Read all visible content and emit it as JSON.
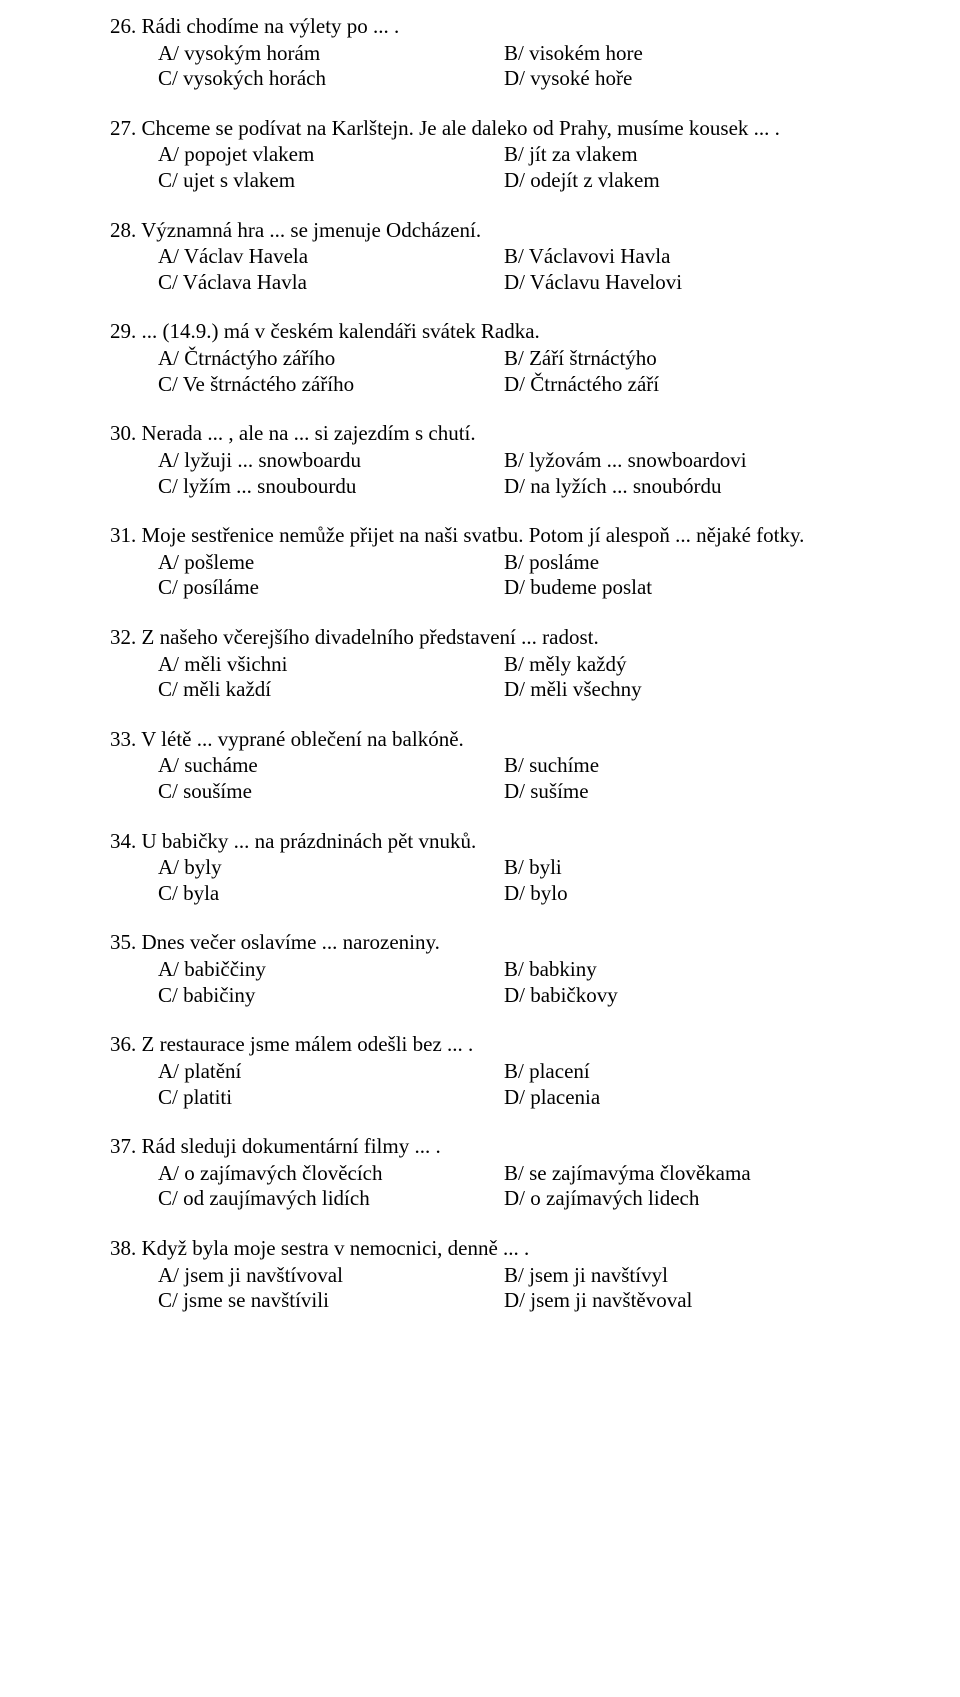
{
  "questions": [
    {
      "num": "26.",
      "text": "Rádi chodíme na výlety po ... .",
      "a": "A/ vysokým horám",
      "b": "B/ visokém hore",
      "c": "C/ vysokých horách",
      "d": "D/ vysoké hoře"
    },
    {
      "num": "27.",
      "text": "Chceme se podívat na Karlštejn. Je ale daleko od Prahy, musíme kousek ... .",
      "a": "A/ popojet vlakem",
      "b": "B/ jít za vlakem",
      "c": "C/ ujet s vlakem",
      "d": "D/ odejít z vlakem"
    },
    {
      "num": "28.",
      "text": "Významná hra ... se jmenuje Odcházení.",
      "a": "A/ Václav Havela",
      "b": "B/ Václavovi Havla",
      "c": "C/ Václava Havla",
      "d": "D/ Václavu Havelovi"
    },
    {
      "num": "29.",
      "text": "... (14.9.) má v českém kalendáři svátek Radka.",
      "a": "A/ Čtrnáctýho zářího",
      "b": "B/ Září štrnáctýho",
      "c": "C/ Ve štrnáctého zářího",
      "d": "D/ Čtrnáctého září"
    },
    {
      "num": "30.",
      "text": "Nerada ... , ale na ... si zajezdím s chutí.",
      "a": "A/ lyžuji ... snowboardu",
      "b": "B/ lyžovám ... snowboardovi",
      "c": "C/ lyžím ... snoubourdu",
      "d": "D/ na lyžích ... snoubórdu"
    },
    {
      "num": "31.",
      "text": "Moje sestřenice nemůže přijet na naši svatbu. Potom jí alespoň ... nějaké fotky.",
      "a": "A/ pošleme",
      "b": "B/ posláme",
      "c": "C/ posíláme",
      "d": "D/ budeme poslat"
    },
    {
      "num": "32.",
      "text": "Z našeho včerejšího divadelního představení ... radost.",
      "a": "A/ měli všichni",
      "b": "B/ měly každý",
      "c": "C/ měli každí",
      "d": "D/ měli všechny"
    },
    {
      "num": "33.",
      "text": "V létě ... vyprané oblečení na balkóně.",
      "a": "A/ sucháme",
      "b": "B/ suchíme",
      "c": "C/ soušíme",
      "d": "D/ sušíme"
    },
    {
      "num": "34.",
      "text": "U babičky ... na prázdninách pět vnuků.",
      "a": "A/ byly",
      "b": "B/ byli",
      "c": "C/ byla",
      "d": "D/ bylo"
    },
    {
      "num": "35.",
      "text": "Dnes večer oslavíme ... narozeniny.",
      "a": "A/ babiččiny",
      "b": "B/ babkiny",
      "c": "C/ babičiny",
      "d": "D/ babičkovy"
    },
    {
      "num": "36.",
      "text": "Z restaurace jsme málem odešli bez ... .",
      "a": "A/ platění",
      "b": "B/ placení",
      "c": "C/ platiti",
      "d": "D/ placenia"
    },
    {
      "num": "37.",
      "text": "Rád sleduji dokumentární filmy ... .",
      "a": "A/ o zajímavých člověcích",
      "b": "B/ se zajímavýma člověkama",
      "c": "C/ od zaujímavých lidích",
      "d": "D/ o zajímavých lidech"
    },
    {
      "num": "38.",
      "text": "Když byla moje sestra v nemocnici, denně ... .",
      "a": "A/ jsem ji navštívoval",
      "b": "B/ jsem ji navštívyl",
      "c": "C/ jsme se navštívili",
      "d": "D/ jsem ji navštěvoval"
    }
  ]
}
